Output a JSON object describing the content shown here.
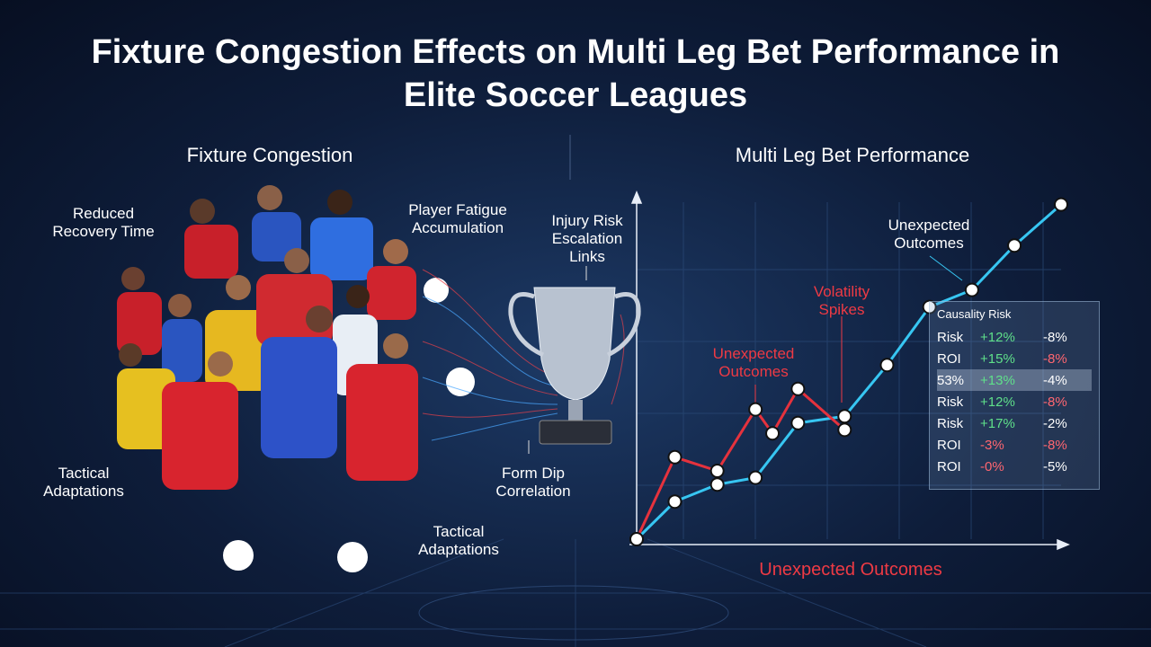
{
  "title": "Fixture Congestion Effects on Multi Leg Bet Performance in Elite Soccer Leagues",
  "left_panel": {
    "heading": "Fixture Congestion",
    "labels": [
      "Reduced Recovery Time",
      "Player Fatigue Accumulation",
      "Tactical Adaptations",
      "Tactical Adaptations"
    ]
  },
  "center": {
    "labels": [
      "Injury Risk Escalation Links",
      "Form Dip Correlation"
    ]
  },
  "chart_data": {
    "type": "line",
    "title": "Multi Leg Bet Performance",
    "x_label": "Unexpected Outcomes",
    "xlim": [
      0,
      100
    ],
    "ylim": [
      0,
      100
    ],
    "series": [
      {
        "color": "#37c6f2",
        "x": [
          0,
          9,
          19,
          28,
          38,
          49,
          59,
          69,
          79,
          89,
          100
        ],
        "values": [
          0,
          11,
          16,
          18,
          34,
          36,
          51,
          68,
          73,
          86,
          98
        ]
      },
      {
        "color": "#e5323d",
        "x": [
          0,
          9,
          19,
          28,
          32,
          38,
          49
        ],
        "values": [
          0,
          24,
          20,
          38,
          31,
          44,
          32
        ]
      }
    ],
    "annotations": [
      "Unexpected Outcomes",
      "Volatility Spikes",
      "Unexpected Outcomes"
    ]
  },
  "table": {
    "title": "Causality Risk",
    "rows": [
      [
        "Risk",
        "+12%",
        "-8%"
      ],
      [
        "ROI",
        "+15%",
        "-8%"
      ],
      [
        "53%",
        "+13%",
        "-4%"
      ],
      [
        "Risk",
        "+12%",
        "-8%"
      ],
      [
        "Risk",
        "+17%",
        "-2%"
      ],
      [
        "ROI",
        "-3%",
        "-8%"
      ],
      [
        "ROI",
        "-0%",
        "-5%"
      ]
    ]
  }
}
